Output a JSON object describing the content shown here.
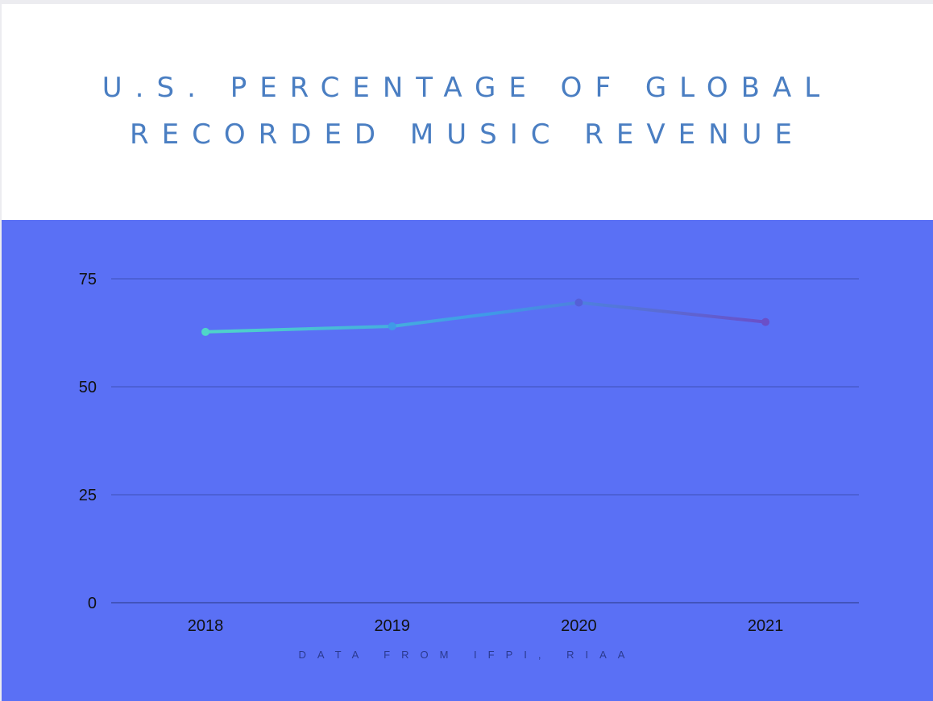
{
  "title_lines": [
    "U.S. PERCENTAGE OF GLOBAL",
    "RECORDED MUSIC REVENUE"
  ],
  "source_note": "DATA FROM IFPI, RIAA",
  "colors": {
    "title": "#4a7ec2",
    "panel_background": "#5a70f5",
    "gridline": "#3d4fb8",
    "line_start": "#4fd6c8",
    "line_mid": "#3f9ae8",
    "line_end": "#6a4fc8"
  },
  "chart_data": {
    "type": "line",
    "title": "U.S. PERCENTAGE OF GLOBAL RECORDED MUSIC REVENUE",
    "xlabel": "",
    "ylabel": "",
    "categories": [
      "2018",
      "2019",
      "2020",
      "2021"
    ],
    "series": [
      {
        "values": [
          62.7,
          64.0,
          69.5,
          65.0
        ]
      }
    ],
    "ylim": [
      0,
      75
    ],
    "yticks": [
      0,
      25,
      50,
      75
    ],
    "grid": true,
    "legend": "none"
  }
}
